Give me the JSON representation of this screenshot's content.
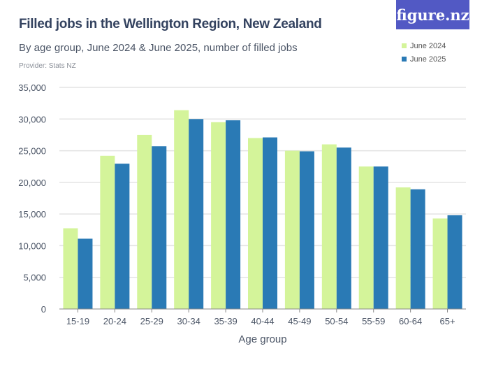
{
  "title": "Filled jobs in the Wellington Region, New Zealand",
  "subtitle": "By age group, June 2024 & June 2025, number of filled jobs",
  "provider": "Provider: Stats NZ",
  "logo": "figure.nz",
  "chart_data": {
    "type": "bar",
    "title": "Filled jobs in the Wellington Region, New Zealand",
    "xlabel": "Age group",
    "ylabel": "",
    "ylim": [
      0,
      35000
    ],
    "yticks": [
      0,
      5000,
      10000,
      15000,
      20000,
      25000,
      30000,
      35000
    ],
    "ytick_labels": [
      "0",
      "5,000",
      "10,000",
      "15,000",
      "20,000",
      "25,000",
      "30,000",
      "35,000"
    ],
    "categories": [
      "15-19",
      "20-24",
      "25-29",
      "30-34",
      "35-39",
      "40-44",
      "45-49",
      "50-54",
      "55-59",
      "60-64",
      "65+"
    ],
    "series": [
      {
        "name": "June 2024",
        "color": "#d4f49a",
        "values": [
          12750,
          24200,
          27500,
          31400,
          29500,
          27000,
          25000,
          26000,
          22500,
          19200,
          14300
        ]
      },
      {
        "name": "June 2025",
        "color": "#2a7ab5",
        "values": [
          11100,
          22950,
          25700,
          30000,
          29800,
          27100,
          24900,
          25500,
          22500,
          18900,
          14800
        ]
      }
    ],
    "legend": "top-right",
    "grid": true
  }
}
